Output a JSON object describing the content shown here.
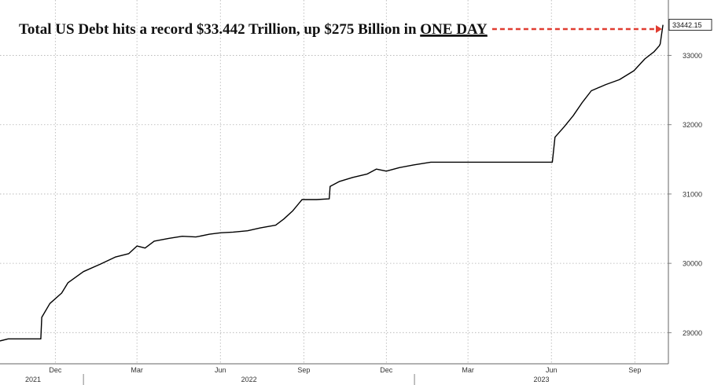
{
  "chart_data": {
    "type": "line",
    "title": "Total US Debt hits a record $33.442 Trillion, up $275 Billion in",
    "title_emphasis": "ONE DAY",
    "last_value_label": "33442.15",
    "y_ticks": [
      29000,
      30000,
      31000,
      32000,
      33000
    ],
    "y_tick_labels": [
      "29000",
      "30000",
      "31000",
      "32000",
      "33000"
    ],
    "ylim": [
      28550,
      33800
    ],
    "x_range": [
      "2021-10-01",
      "2023-10-08"
    ],
    "month_ticks": [
      {
        "date": "2021-12-01",
        "label": "Dec"
      },
      {
        "date": "2022-03-01",
        "label": "Mar"
      },
      {
        "date": "2022-06-01",
        "label": "Jun"
      },
      {
        "date": "2022-09-01",
        "label": "Sep"
      },
      {
        "date": "2022-12-01",
        "label": "Dec"
      },
      {
        "date": "2023-03-01",
        "label": "Mar"
      },
      {
        "date": "2023-06-01",
        "label": "Jun"
      },
      {
        "date": "2023-09-01",
        "label": "Sep"
      }
    ],
    "year_labels": [
      {
        "date": "2021-10-01",
        "label": "2021"
      },
      {
        "date": "2022-01-01",
        "label": "2022"
      },
      {
        "date": "2023-01-01",
        "label": "2023"
      }
    ],
    "grid": true,
    "colors": {
      "line": "#000000",
      "grid": "#b0b0b0",
      "arrow": "#e03c31",
      "axis": "#666666"
    },
    "series": [
      {
        "points": [
          [
            "2021-10-01",
            28880
          ],
          [
            "2021-10-10",
            28910
          ],
          [
            "2021-11-15",
            28910
          ],
          [
            "2021-11-16",
            29220
          ],
          [
            "2021-11-25",
            29420
          ],
          [
            "2021-12-08",
            29570
          ],
          [
            "2021-12-15",
            29720
          ],
          [
            "2022-01-01",
            29880
          ],
          [
            "2022-01-20",
            29990
          ],
          [
            "2022-02-05",
            30090
          ],
          [
            "2022-02-20",
            30140
          ],
          [
            "2022-03-01",
            30250
          ],
          [
            "2022-03-10",
            30220
          ],
          [
            "2022-03-20",
            30320
          ],
          [
            "2022-04-05",
            30360
          ],
          [
            "2022-04-20",
            30390
          ],
          [
            "2022-05-05",
            30380
          ],
          [
            "2022-05-20",
            30420
          ],
          [
            "2022-06-01",
            30440
          ],
          [
            "2022-06-15",
            30450
          ],
          [
            "2022-07-01",
            30470
          ],
          [
            "2022-07-15",
            30510
          ],
          [
            "2022-08-01",
            30550
          ],
          [
            "2022-08-10",
            30640
          ],
          [
            "2022-08-20",
            30760
          ],
          [
            "2022-08-30",
            30920
          ],
          [
            "2022-09-15",
            30920
          ],
          [
            "2022-09-29",
            30930
          ],
          [
            "2022-09-30",
            31110
          ],
          [
            "2022-10-10",
            31180
          ],
          [
            "2022-10-25",
            31240
          ],
          [
            "2022-11-10",
            31290
          ],
          [
            "2022-11-20",
            31360
          ],
          [
            "2022-12-01",
            31330
          ],
          [
            "2022-12-15",
            31380
          ],
          [
            "2022-12-31",
            31420
          ],
          [
            "2023-01-19",
            31460
          ],
          [
            "2023-02-15",
            31460
          ],
          [
            "2023-03-15",
            31460
          ],
          [
            "2023-04-15",
            31460
          ],
          [
            "2023-05-20",
            31460
          ],
          [
            "2023-06-02",
            31460
          ],
          [
            "2023-06-05",
            31820
          ],
          [
            "2023-06-15",
            31970
          ],
          [
            "2023-06-25",
            32130
          ],
          [
            "2023-07-05",
            32320
          ],
          [
            "2023-07-15",
            32490
          ],
          [
            "2023-07-31",
            32580
          ],
          [
            "2023-08-15",
            32650
          ],
          [
            "2023-08-31",
            32780
          ],
          [
            "2023-09-12",
            32950
          ],
          [
            "2023-09-22",
            33050
          ],
          [
            "2023-09-28",
            33140
          ],
          [
            "2023-09-29",
            33167
          ],
          [
            "2023-10-02",
            33442.15
          ]
        ]
      }
    ]
  }
}
